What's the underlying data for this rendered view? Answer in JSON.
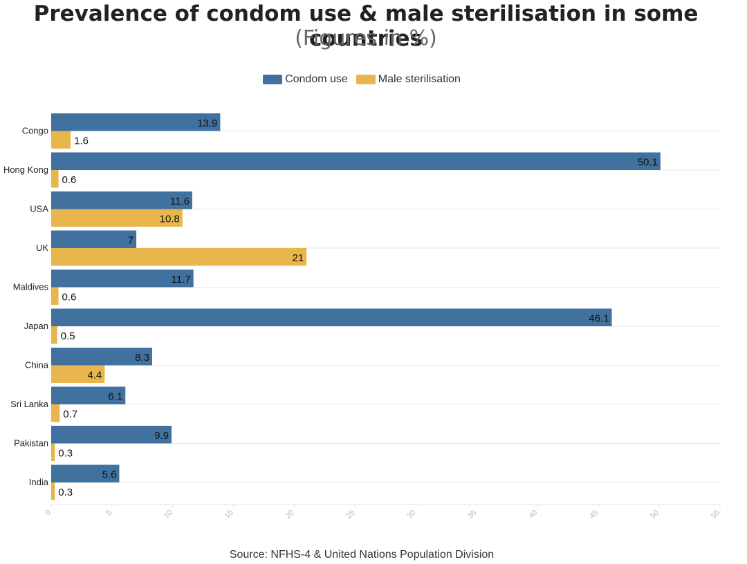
{
  "chart_data": {
    "type": "bar",
    "orientation": "horizontal",
    "title": "Prevalence of condom use & male sterilisation in some countries",
    "subtitle": "(Figures in %)",
    "source": "Source: NFHS-4 & United Nations Population Division",
    "categories": [
      "Congo",
      "Hong Kong",
      "USA",
      "UK",
      "Maldives",
      "Japan",
      "China",
      "Sri Lanka",
      "Pakistan",
      "India"
    ],
    "series": [
      {
        "name": "Condom use",
        "color": "#41729f",
        "values": [
          13.9,
          50.1,
          11.6,
          7,
          11.7,
          46.1,
          8.3,
          6.1,
          9.9,
          5.6
        ],
        "labels": [
          "13.9",
          "50.1",
          "11.6",
          "7",
          "11.7",
          "46.1",
          "8.3",
          "6.1",
          "9.9",
          "5.6"
        ]
      },
      {
        "name": "Male sterilisation",
        "color": "#e8b64c",
        "values": [
          1.6,
          0.6,
          10.8,
          21,
          0.6,
          0.5,
          4.4,
          0.7,
          0.3,
          0.3
        ],
        "labels": [
          "1.6",
          "0.6",
          "10.8",
          "21",
          "0.6",
          "0.5",
          "4.4",
          "0.7",
          "0.3",
          "0.3"
        ]
      }
    ],
    "xlim": [
      0,
      55
    ],
    "xticks": [
      "0",
      "5",
      "10",
      "15",
      "20",
      "25",
      "30",
      "35",
      "40",
      "45",
      "50",
      "55"
    ],
    "grid": true,
    "legend_position": "top-center"
  }
}
